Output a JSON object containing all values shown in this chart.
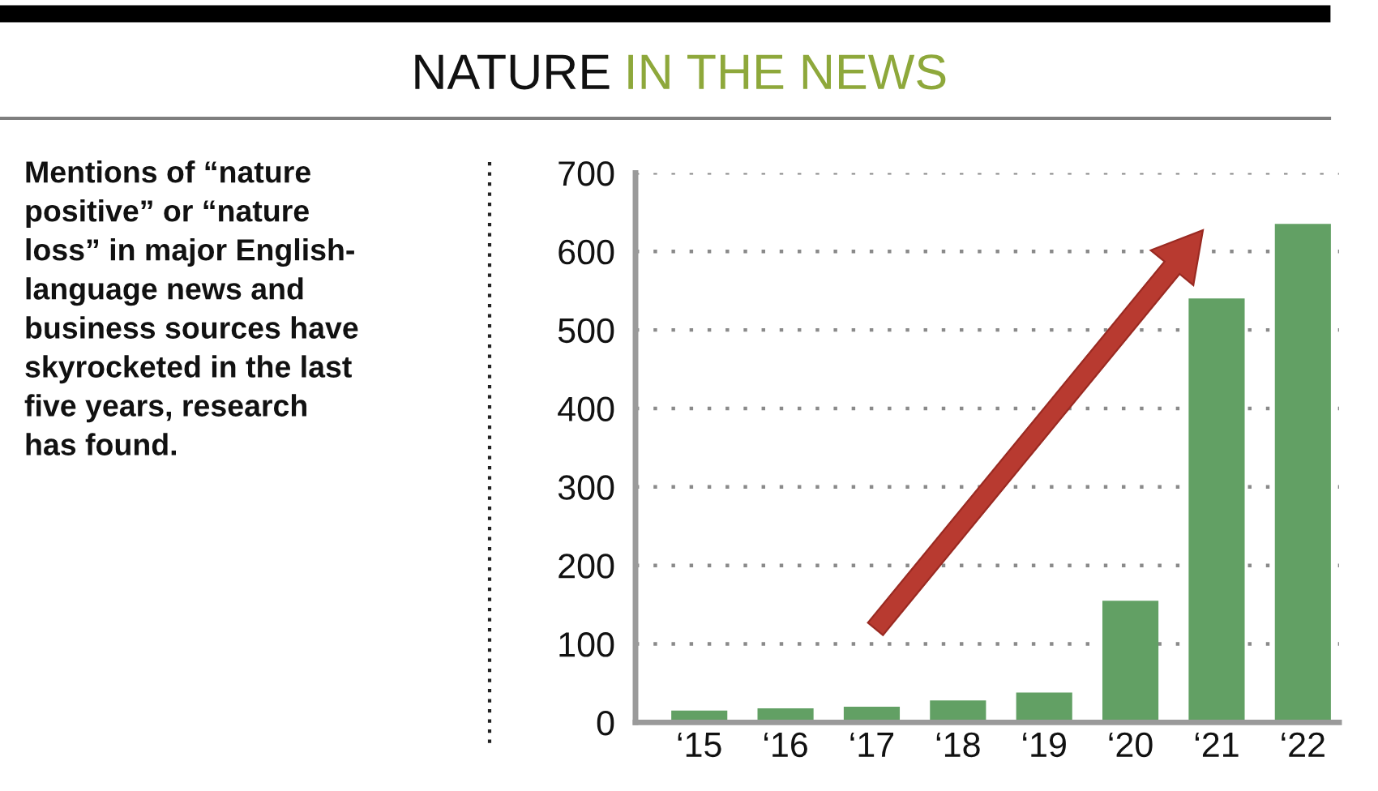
{
  "chart_data": {
    "type": "bar",
    "title": "NATURE IN THE NEWS",
    "annotations": [
      "Mentions of “nature\npositive” or “nature\nloss” in major English-\nlanguage news and\nbusiness sources have\nskyrocketed in the last\nfive years, research\nhas found."
    ],
    "categories": [
      "‘15",
      "‘16",
      "‘17",
      "‘18",
      "‘19",
      "‘20",
      "‘21",
      "‘22"
    ],
    "values": [
      15,
      18,
      20,
      28,
      38,
      155,
      540,
      635
    ],
    "color": "#62a064",
    "ylim": [
      0,
      700
    ],
    "yticks": [
      0,
      100,
      200,
      300,
      400,
      500,
      600,
      700
    ],
    "grid": "y"
  }
}
